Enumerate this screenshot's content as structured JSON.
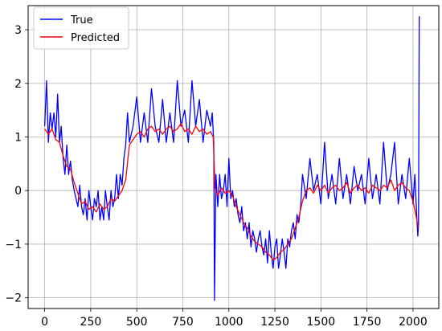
{
  "chart_data": {
    "type": "line",
    "title": "",
    "xlabel": "",
    "ylabel": "",
    "xlim": [
      -90,
      2140
    ],
    "ylim": [
      -2.2,
      3.45
    ],
    "grid": true,
    "legend_position": "top-left",
    "xticks": [
      0,
      250,
      500,
      750,
      1000,
      1250,
      1500,
      1750,
      2000
    ],
    "xtick_labels": [
      "0",
      "250",
      "500",
      "750",
      "1000",
      "1250",
      "1500",
      "1750",
      "2000"
    ],
    "yticks": [
      -2,
      -1,
      0,
      1,
      2,
      3
    ],
    "ytick_labels": [
      "−2",
      "−1",
      "0",
      "1",
      "2",
      "3"
    ],
    "series": [
      {
        "name": "True",
        "color": "#0000ff",
        "x": [
          0,
          10,
          20,
          30,
          40,
          50,
          60,
          70,
          80,
          90,
          100,
          110,
          120,
          130,
          140,
          150,
          160,
          170,
          180,
          190,
          200,
          210,
          220,
          230,
          240,
          250,
          260,
          270,
          280,
          290,
          300,
          310,
          320,
          330,
          340,
          350,
          360,
          370,
          380,
          390,
          400,
          410,
          420,
          430,
          440,
          450,
          460,
          480,
          500,
          520,
          540,
          560,
          580,
          600,
          620,
          640,
          660,
          680,
          700,
          720,
          740,
          760,
          780,
          800,
          820,
          840,
          860,
          880,
          900,
          910,
          918,
          922,
          930,
          940,
          950,
          960,
          970,
          980,
          990,
          1000,
          1010,
          1020,
          1030,
          1040,
          1050,
          1060,
          1070,
          1080,
          1090,
          1100,
          1110,
          1120,
          1130,
          1140,
          1150,
          1160,
          1170,
          1180,
          1190,
          1200,
          1210,
          1220,
          1230,
          1240,
          1250,
          1260,
          1270,
          1280,
          1290,
          1300,
          1310,
          1320,
          1330,
          1340,
          1350,
          1360,
          1370,
          1380,
          1390,
          1400,
          1420,
          1440,
          1460,
          1480,
          1500,
          1520,
          1540,
          1560,
          1580,
          1600,
          1620,
          1640,
          1660,
          1680,
          1700,
          1720,
          1740,
          1760,
          1780,
          1800,
          1820,
          1840,
          1860,
          1880,
          1900,
          1920,
          1940,
          1960,
          1980,
          2000,
          2010,
          2020,
          2026,
          2030,
          2034
        ],
        "y": [
          1.2,
          2.05,
          0.9,
          1.45,
          1.15,
          1.45,
          1.0,
          1.8,
          0.9,
          1.2,
          0.6,
          0.3,
          0.85,
          0.3,
          0.55,
          0.2,
          0.0,
          -0.15,
          -0.3,
          0.1,
          -0.3,
          -0.45,
          -0.15,
          -0.55,
          0.0,
          -0.3,
          -0.55,
          -0.15,
          -0.3,
          0.0,
          -0.55,
          -0.3,
          -0.55,
          0.0,
          -0.3,
          -0.55,
          0.0,
          -0.3,
          -0.15,
          0.3,
          -0.15,
          0.3,
          0.1,
          0.6,
          0.85,
          1.45,
          0.9,
          1.2,
          1.75,
          0.9,
          1.45,
          0.9,
          1.9,
          1.2,
          0.9,
          1.7,
          0.9,
          1.45,
          0.9,
          2.05,
          1.2,
          1.5,
          0.9,
          2.05,
          1.2,
          1.7,
          0.9,
          1.5,
          1.2,
          1.45,
          0.9,
          -2.05,
          0.3,
          -0.3,
          0.3,
          -0.15,
          0.0,
          0.3,
          -0.3,
          0.6,
          -0.15,
          0.0,
          -0.3,
          -0.15,
          -0.45,
          -0.6,
          -0.3,
          -0.75,
          -0.6,
          -0.9,
          -0.6,
          -1.05,
          -0.75,
          -0.9,
          -1.15,
          -0.9,
          -0.75,
          -1.05,
          -1.2,
          -0.9,
          -1.35,
          -0.75,
          -1.15,
          -1.45,
          -1.05,
          -0.9,
          -1.45,
          -1.2,
          -0.9,
          -1.15,
          -1.45,
          -0.9,
          -1.05,
          -0.75,
          -0.6,
          -0.9,
          -0.45,
          -0.6,
          -0.3,
          0.3,
          -0.15,
          0.6,
          0.0,
          0.3,
          -0.25,
          0.9,
          -0.15,
          0.3,
          -0.25,
          0.6,
          -0.15,
          0.3,
          -0.25,
          0.45,
          0.0,
          0.3,
          -0.25,
          0.6,
          -0.15,
          0.3,
          -0.25,
          0.9,
          0.0,
          0.3,
          0.9,
          -0.25,
          0.3,
          -0.15,
          0.6,
          -0.25,
          0.3,
          -0.45,
          -0.85,
          -0.6,
          3.25
        ],
        "values": [
          1.2,
          2.05,
          0.9,
          1.45,
          1.15,
          1.45,
          1.0,
          1.8,
          0.9,
          1.2,
          0.6,
          0.3,
          0.85,
          0.3,
          0.55,
          0.2,
          0.0,
          -0.15,
          -0.3,
          0.1,
          -0.3,
          -0.45,
          -0.15,
          -0.55,
          0.0,
          -0.3,
          -0.55,
          -0.15,
          -0.3,
          0.0,
          -0.55,
          -0.3,
          -0.55,
          0.0,
          -0.3,
          -0.55,
          0.0,
          -0.3,
          -0.15,
          0.3,
          -0.15,
          0.3,
          0.1,
          0.6,
          0.85,
          1.45,
          0.9,
          1.2,
          1.75,
          0.9,
          1.45,
          0.9,
          1.9,
          1.2,
          0.9,
          1.7,
          0.9,
          1.45,
          0.9,
          2.05,
          1.2,
          1.5,
          0.9,
          2.05,
          1.2,
          1.7,
          0.9,
          1.5,
          1.2,
          1.45,
          0.9,
          -2.05,
          0.3,
          -0.3,
          0.3,
          -0.15,
          0.0,
          0.3,
          -0.3,
          0.6,
          -0.15,
          0.0,
          -0.3,
          -0.15,
          -0.45,
          -0.6,
          -0.3,
          -0.75,
          -0.6,
          -0.9,
          -0.6,
          -1.05,
          -0.75,
          -0.9,
          -1.15,
          -0.9,
          -0.75,
          -1.05,
          -1.2,
          -0.9,
          -1.35,
          -0.75,
          -1.15,
          -1.45,
          -1.05,
          -0.9,
          -1.45,
          -1.2,
          -0.9,
          -1.15,
          -1.45,
          -0.9,
          -1.05,
          -0.75,
          -0.6,
          -0.9,
          -0.45,
          -0.6,
          -0.3,
          0.3,
          -0.15,
          0.6,
          0.0,
          0.3,
          -0.25,
          0.9,
          -0.15,
          0.3,
          -0.25,
          0.6,
          -0.15,
          0.3,
          -0.25,
          0.45,
          0.0,
          0.3,
          -0.25,
          0.6,
          -0.15,
          0.3,
          -0.25,
          0.9,
          0.0,
          0.3,
          0.9,
          -0.25,
          0.3,
          -0.15,
          0.6,
          -0.25,
          0.3,
          -0.45,
          -0.85,
          -0.6,
          3.25
        ]
      },
      {
        "name": "Predicted",
        "color": "#ff0000",
        "x": [
          0,
          20,
          40,
          60,
          80,
          100,
          120,
          140,
          160,
          180,
          200,
          220,
          240,
          260,
          280,
          300,
          320,
          340,
          360,
          380,
          400,
          420,
          440,
          460,
          480,
          500,
          520,
          540,
          560,
          580,
          600,
          620,
          640,
          660,
          680,
          700,
          720,
          740,
          760,
          780,
          800,
          820,
          840,
          860,
          880,
          900,
          915,
          925,
          940,
          960,
          980,
          1000,
          1020,
          1040,
          1060,
          1080,
          1100,
          1120,
          1140,
          1160,
          1180,
          1200,
          1220,
          1240,
          1260,
          1280,
          1300,
          1320,
          1340,
          1360,
          1380,
          1400,
          1420,
          1440,
          1460,
          1480,
          1500,
          1520,
          1540,
          1560,
          1580,
          1600,
          1620,
          1640,
          1660,
          1680,
          1700,
          1720,
          1740,
          1760,
          1780,
          1800,
          1820,
          1840,
          1860,
          1880,
          1900,
          1920,
          1940,
          1960,
          1980,
          2000,
          2015,
          2030
        ],
        "y": [
          1.15,
          1.05,
          1.15,
          0.95,
          0.9,
          0.65,
          0.45,
          0.4,
          0.15,
          -0.05,
          -0.25,
          -0.2,
          -0.35,
          -0.3,
          -0.4,
          -0.25,
          -0.35,
          -0.3,
          -0.15,
          -0.2,
          -0.1,
          0.0,
          0.2,
          0.85,
          0.95,
          1.05,
          1.1,
          1.0,
          1.15,
          1.2,
          1.1,
          1.15,
          1.05,
          1.15,
          1.2,
          1.1,
          1.15,
          1.25,
          1.1,
          1.15,
          1.05,
          1.2,
          1.1,
          1.15,
          1.05,
          1.1,
          1.0,
          0.05,
          -0.1,
          0.05,
          -0.05,
          0.0,
          -0.1,
          -0.3,
          -0.45,
          -0.6,
          -0.7,
          -0.85,
          -0.95,
          -1.0,
          -1.05,
          -1.15,
          -1.2,
          -1.3,
          -1.25,
          -1.15,
          -1.1,
          -1.0,
          -0.9,
          -0.7,
          -0.5,
          -0.2,
          0.0,
          0.05,
          -0.05,
          0.1,
          0.0,
          0.1,
          -0.05,
          0.05,
          0.1,
          0.0,
          0.05,
          0.15,
          -0.05,
          0.05,
          0.1,
          0.0,
          0.05,
          -0.05,
          0.1,
          0.05,
          0.0,
          0.1,
          0.05,
          0.2,
          0.0,
          0.1,
          0.15,
          0.05,
          0.0,
          -0.2,
          -0.45,
          -0.7
        ],
        "values": [
          1.15,
          1.05,
          1.15,
          0.95,
          0.9,
          0.65,
          0.45,
          0.4,
          0.15,
          -0.05,
          -0.25,
          -0.2,
          -0.35,
          -0.3,
          -0.4,
          -0.25,
          -0.35,
          -0.3,
          -0.15,
          -0.2,
          -0.1,
          0.0,
          0.2,
          0.85,
          0.95,
          1.05,
          1.1,
          1.0,
          1.15,
          1.2,
          1.1,
          1.15,
          1.05,
          1.15,
          1.2,
          1.1,
          1.15,
          1.25,
          1.1,
          1.15,
          1.05,
          1.2,
          1.1,
          1.15,
          1.05,
          1.1,
          1.0,
          0.05,
          -0.1,
          0.05,
          -0.05,
          0.0,
          -0.1,
          -0.3,
          -0.45,
          -0.6,
          -0.7,
          -0.85,
          -0.95,
          -1.0,
          -1.05,
          -1.15,
          -1.2,
          -1.3,
          -1.25,
          -1.15,
          -1.1,
          -1.0,
          -0.9,
          -0.7,
          -0.5,
          -0.2,
          0.0,
          0.05,
          -0.05,
          0.1,
          0.0,
          0.1,
          -0.05,
          0.05,
          0.1,
          0.0,
          0.05,
          0.15,
          -0.05,
          0.05,
          0.1,
          0.0,
          0.05,
          -0.05,
          0.1,
          0.05,
          0.0,
          0.1,
          0.05,
          0.2,
          0.0,
          0.1,
          0.15,
          0.05,
          0.0,
          -0.2,
          -0.45,
          -0.7
        ]
      }
    ]
  }
}
